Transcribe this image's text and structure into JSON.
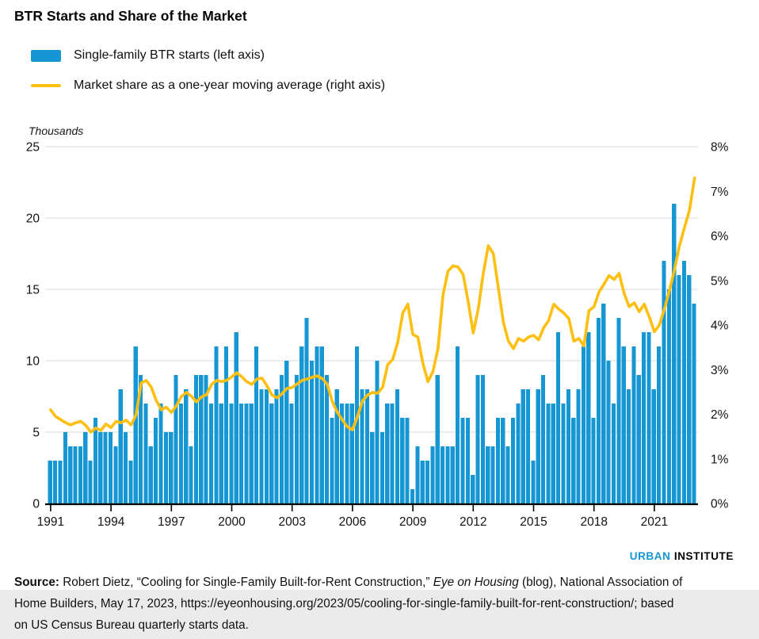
{
  "title": "BTR Starts and Share of the Market",
  "legend": {
    "bars_label": "Single-family BTR starts (left axis)",
    "line_label": "Market share as a one-year moving average (right axis)"
  },
  "unit_label": "Thousands",
  "colors": {
    "bar": "#1696d2",
    "line": "#fdbf11",
    "gridline": "#d9d9d9",
    "axis": "#000000",
    "text": "#131313",
    "footer_band": "#ebebeb"
  },
  "chart_data": {
    "type": "bar+line-dual-axis",
    "frequency": "quarterly",
    "x_start": "1991Q1",
    "x_end": "2023Q1",
    "x_tick_labels": [
      "1991",
      "1994",
      "1997",
      "2000",
      "2003",
      "2006",
      "2009",
      "2012",
      "2015",
      "2018",
      "2021"
    ],
    "left_axis": {
      "label": "Thousands",
      "ticks": [
        0,
        5,
        10,
        15,
        20,
        25
      ],
      "range": [
        0,
        25
      ]
    },
    "right_axis": {
      "ticks": [
        "0%",
        "1%",
        "2%",
        "3%",
        "4%",
        "5%",
        "6%",
        "7%",
        "8%"
      ],
      "range": [
        0,
        8
      ]
    },
    "grid": "horizontal",
    "legend_position": "top-left",
    "series": [
      {
        "name": "Single-family BTR starts (left axis)",
        "type": "bar",
        "axis": "left",
        "color": "#1696d2",
        "unit": "thousands",
        "values": [
          3,
          3,
          3,
          5,
          4,
          4,
          4,
          5,
          3,
          6,
          5,
          5,
          5,
          4,
          8,
          5,
          3,
          11,
          9,
          7,
          4,
          6,
          7,
          5,
          5,
          9,
          7,
          8,
          4,
          9,
          9,
          9,
          7,
          11,
          7,
          11,
          7,
          12,
          7,
          7,
          7,
          11,
          8,
          8,
          7,
          8,
          9,
          10,
          7,
          9,
          11,
          13,
          10,
          11,
          11,
          9,
          6,
          8,
          7,
          7,
          7,
          11,
          8,
          8,
          5,
          10,
          5,
          7,
          7,
          8,
          6,
          6,
          1,
          4,
          3,
          3,
          4,
          9,
          4,
          4,
          4,
          11,
          6,
          6,
          2,
          9,
          9,
          4,
          4,
          6,
          6,
          4,
          6,
          7,
          8,
          8,
          3,
          8,
          9,
          7,
          7,
          12,
          7,
          8,
          6,
          8,
          11,
          12,
          6,
          13,
          14,
          10,
          7,
          13,
          11,
          8,
          11,
          9,
          12,
          12,
          8,
          11,
          17,
          15,
          21,
          16,
          17,
          16,
          14
        ]
      },
      {
        "name": "Market share as a one-year moving average (right axis)",
        "type": "line",
        "axis": "right",
        "color": "#fdbf11",
        "unit": "%",
        "values": [
          2.1,
          1.95,
          1.88,
          1.81,
          1.76,
          1.81,
          1.84,
          1.75,
          1.6,
          1.69,
          1.64,
          1.78,
          1.7,
          1.84,
          1.81,
          1.87,
          1.76,
          1.99,
          2.7,
          2.76,
          2.61,
          2.31,
          2.1,
          2.16,
          2.04,
          2.19,
          2.4,
          2.49,
          2.4,
          2.28,
          2.39,
          2.44,
          2.67,
          2.76,
          2.73,
          2.76,
          2.84,
          2.93,
          2.84,
          2.73,
          2.67,
          2.79,
          2.81,
          2.64,
          2.43,
          2.37,
          2.46,
          2.58,
          2.6,
          2.68,
          2.76,
          2.79,
          2.83,
          2.86,
          2.8,
          2.67,
          2.28,
          2.04,
          1.87,
          1.72,
          1.65,
          1.95,
          2.3,
          2.43,
          2.49,
          2.47,
          2.61,
          3.11,
          3.23,
          3.61,
          4.27,
          4.47,
          3.79,
          3.73,
          3.14,
          2.73,
          2.96,
          3.47,
          4.68,
          5.21,
          5.33,
          5.3,
          5.13,
          4.53,
          3.82,
          4.36,
          5.16,
          5.78,
          5.6,
          4.83,
          4.06,
          3.64,
          3.47,
          3.7,
          3.64,
          3.73,
          3.77,
          3.67,
          3.94,
          4.1,
          4.47,
          4.36,
          4.27,
          4.15,
          3.64,
          3.7,
          3.53,
          4.32,
          4.41,
          4.74,
          4.92,
          5.11,
          5.02,
          5.16,
          4.71,
          4.41,
          4.5,
          4.3,
          4.47,
          4.18,
          3.85,
          4.0,
          4.36,
          4.77,
          5.24,
          5.78,
          6.19,
          6.58,
          7.3
        ]
      }
    ]
  },
  "logo": {
    "part1": "URBAN",
    "part2": "INSTITUTE",
    "part1_color": "#1696d2",
    "part2_color": "#000000"
  },
  "source": {
    "line1_bold": "Source:",
    "line1_rest": " Robert Dietz, “Cooling for Single-Family Built-for-Rent Construction,” ",
    "line1_italic": "Eye on Housing",
    "line1_tail": " (blog), National Association of",
    "line2": "Home Builders, May 17, 2023, https://eyeonhousing.org/2023/05/cooling-for-single-family-built-for-rent-construction/; based",
    "line3": "on US Census Bureau quarterly starts data."
  }
}
